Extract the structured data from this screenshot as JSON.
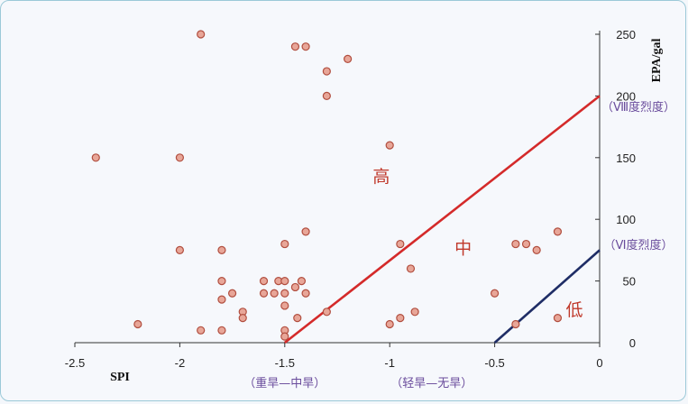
{
  "chart_data": {
    "type": "scatter",
    "xlabel": "SPI",
    "ylabel": "EPA/gal",
    "xlim": [
      -2.5,
      0
    ],
    "ylim": [
      0,
      250
    ],
    "x_ticks": [
      "-2.5",
      "-2",
      "-1.5",
      "-1",
      "-0.5",
      "0"
    ],
    "y_ticks": [
      "0",
      "50",
      "100",
      "150",
      "200",
      "250"
    ],
    "points": [
      {
        "x": -1.9,
        "y": 250
      },
      {
        "x": -1.45,
        "y": 240
      },
      {
        "x": -1.4,
        "y": 240
      },
      {
        "x": -1.2,
        "y": 230
      },
      {
        "x": -1.3,
        "y": 220
      },
      {
        "x": -1.3,
        "y": 200
      },
      {
        "x": -2.4,
        "y": 150
      },
      {
        "x": -2.0,
        "y": 150
      },
      {
        "x": -1.0,
        "y": 160
      },
      {
        "x": -1.4,
        "y": 90
      },
      {
        "x": -2.0,
        "y": 75
      },
      {
        "x": -1.8,
        "y": 75
      },
      {
        "x": -1.5,
        "y": 80
      },
      {
        "x": -0.95,
        "y": 80
      },
      {
        "x": -0.9,
        "y": 60
      },
      {
        "x": -1.8,
        "y": 50
      },
      {
        "x": -1.6,
        "y": 50
      },
      {
        "x": -1.53,
        "y": 50
      },
      {
        "x": -1.5,
        "y": 50
      },
      {
        "x": -1.42,
        "y": 50
      },
      {
        "x": -1.45,
        "y": 45
      },
      {
        "x": -1.75,
        "y": 40
      },
      {
        "x": -1.6,
        "y": 40
      },
      {
        "x": -1.55,
        "y": 40
      },
      {
        "x": -1.5,
        "y": 40
      },
      {
        "x": -1.4,
        "y": 40
      },
      {
        "x": -1.8,
        "y": 35
      },
      {
        "x": -1.5,
        "y": 30
      },
      {
        "x": -1.7,
        "y": 25
      },
      {
        "x": -1.3,
        "y": 25
      },
      {
        "x": -0.88,
        "y": 25
      },
      {
        "x": -1.7,
        "y": 20
      },
      {
        "x": -1.44,
        "y": 20
      },
      {
        "x": -0.95,
        "y": 20
      },
      {
        "x": -1.0,
        "y": 15
      },
      {
        "x": -2.2,
        "y": 15
      },
      {
        "x": -1.9,
        "y": 10
      },
      {
        "x": -1.8,
        "y": 10
      },
      {
        "x": -1.5,
        "y": 10
      },
      {
        "x": -1.5,
        "y": 5
      },
      {
        "x": -0.5,
        "y": 40
      },
      {
        "x": -0.4,
        "y": 80
      },
      {
        "x": -0.35,
        "y": 80
      },
      {
        "x": -0.3,
        "y": 75
      },
      {
        "x": -0.2,
        "y": 90
      },
      {
        "x": -0.4,
        "y": 15
      },
      {
        "x": -0.2,
        "y": 20
      }
    ],
    "lines": [
      {
        "name": "red-boundary",
        "color": "#d42a2a",
        "from": [
          -1.5,
          0
        ],
        "to": [
          0,
          200
        ]
      },
      {
        "name": "blue-boundary",
        "color": "#1f2d66",
        "from": [
          -0.5,
          0
        ],
        "to": [
          0,
          75
        ]
      }
    ],
    "annotations": {
      "high": {
        "text": "高",
        "x": -1.04,
        "y": 130
      },
      "mid": {
        "text": "中",
        "x": -0.65,
        "y": 72
      },
      "low": {
        "text": "低",
        "x": -0.12,
        "y": 22
      },
      "intensity8": {
        "text": "（Ⅷ度烈度）",
        "y": 188
      },
      "intensity6": {
        "text": "（Ⅵ度烈度）",
        "y": 76
      },
      "severe_drought": {
        "text": "（重旱—中旱）",
        "x": -1.5
      },
      "light_drought": {
        "text": "（轻旱—无旱）",
        "x": -0.8
      }
    },
    "grid": false
  }
}
